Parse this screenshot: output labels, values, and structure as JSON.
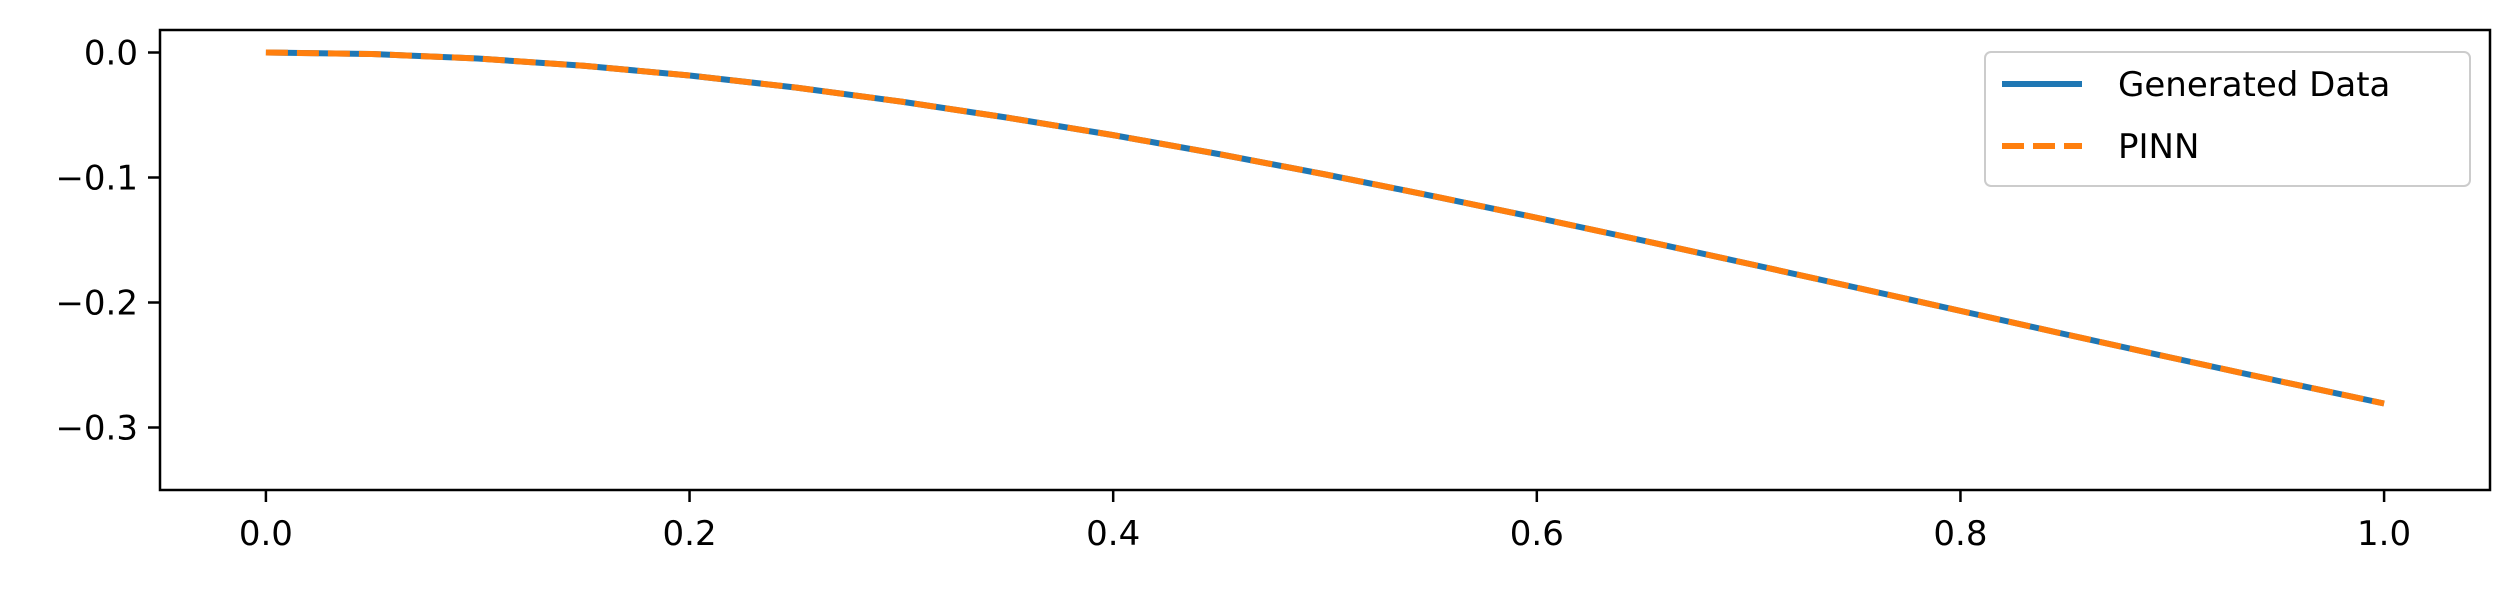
{
  "chart_data": {
    "type": "line",
    "title": "",
    "xlabel": "",
    "ylabel": "",
    "xlim": [
      -0.05,
      1.05
    ],
    "ylim": [
      -0.35,
      0.018
    ],
    "x_ticks": [
      0.0,
      0.2,
      0.4,
      0.6,
      0.8,
      1.0
    ],
    "x_tick_labels": [
      "0.0",
      "0.2",
      "0.4",
      "0.6",
      "0.8",
      "1.0"
    ],
    "y_ticks": [
      0.0,
      -0.1,
      -0.2,
      -0.3
    ],
    "y_tick_labels": [
      "0.0",
      "−0.1",
      "−0.2",
      "−0.3"
    ],
    "grid": false,
    "legend_position": "top-right",
    "x": [
      0.0,
      0.05,
      0.1,
      0.15,
      0.2,
      0.25,
      0.3,
      0.35,
      0.4,
      0.45,
      0.5,
      0.55,
      0.6,
      0.65,
      0.7,
      0.75,
      0.8,
      0.85,
      0.9,
      0.95,
      1.0
    ],
    "series": [
      {
        "name": "Generated Data",
        "color": "#1f77b4",
        "style": "solid",
        "values": [
          0.0,
          -0.0012,
          -0.0048,
          -0.0106,
          -0.0184,
          -0.028,
          -0.0393,
          -0.0521,
          -0.0661,
          -0.0813,
          -0.0975,
          -0.1145,
          -0.1322,
          -0.1504,
          -0.169,
          -0.1878,
          -0.2067,
          -0.2256,
          -0.2443,
          -0.2627,
          -0.2808
        ]
      },
      {
        "name": "PINN",
        "color": "#ff7f0e",
        "style": "dashed",
        "values": [
          0.0,
          -0.0012,
          -0.0048,
          -0.0106,
          -0.0184,
          -0.028,
          -0.0393,
          -0.0521,
          -0.0661,
          -0.0813,
          -0.0975,
          -0.1145,
          -0.1322,
          -0.1504,
          -0.169,
          -0.1878,
          -0.2067,
          -0.2256,
          -0.2443,
          -0.2627,
          -0.2808
        ]
      }
    ]
  }
}
